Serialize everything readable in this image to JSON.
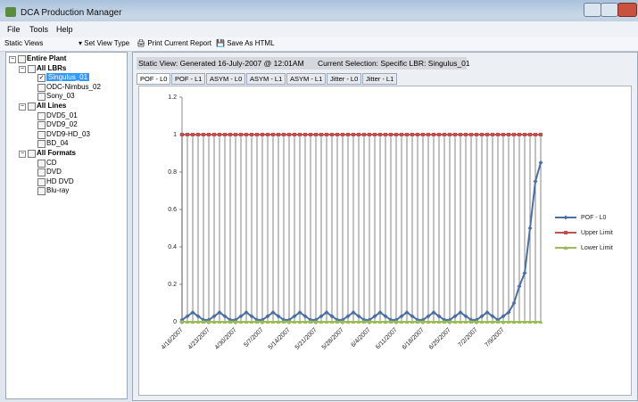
{
  "window": {
    "title": "DCA Production Manager"
  },
  "menu": [
    "File",
    "Tools",
    "Help"
  ],
  "toolbar": {
    "static_views": "Static Views",
    "set_view_type": "Set View Type",
    "print": "Print Current Report",
    "save": "Save As HTML"
  },
  "tree": {
    "label": "Entire Plant",
    "children": [
      {
        "label": "All LBRs",
        "children": [
          {
            "label": "Singulus_01",
            "checked": true,
            "selected": true
          },
          {
            "label": "ODC-Nimbus_02"
          },
          {
            "label": "Sony_03"
          }
        ]
      },
      {
        "label": "All Lines",
        "children": [
          {
            "label": "DVD5_01"
          },
          {
            "label": "DVD9_02"
          },
          {
            "label": "DVD9-HD_03"
          },
          {
            "label": "BD_04"
          }
        ]
      },
      {
        "label": "All Formats",
        "children": [
          {
            "label": "CD"
          },
          {
            "label": "DVD"
          },
          {
            "label": "HD DVD"
          },
          {
            "label": "Blu-ray"
          }
        ]
      }
    ]
  },
  "status": {
    "static_view": "Static View: Generated 16-July-2007 @ 12:01AM",
    "current_selection": "Current Selection: Specific LBR: Singulus_01"
  },
  "tabs": [
    "POF - L0",
    "POF - L1",
    "ASYM - L0",
    "ASYM - L1",
    "ASYM - L1",
    "Jitter - L0",
    "Jitter - L1"
  ],
  "chart_data": {
    "type": "line",
    "categories": [
      "4/16/2007",
      null,
      null,
      null,
      null,
      "4/23/2007",
      null,
      null,
      null,
      null,
      "4/30/2007",
      null,
      null,
      null,
      null,
      "5/7/2007",
      null,
      null,
      null,
      null,
      "5/14/2007",
      null,
      null,
      null,
      null,
      "5/21/2007",
      null,
      null,
      null,
      null,
      "5/28/2007",
      null,
      null,
      null,
      null,
      "6/4/2007",
      null,
      null,
      null,
      null,
      "6/11/2007",
      null,
      null,
      null,
      null,
      "6/18/2007",
      null,
      null,
      null,
      null,
      "6/25/2007",
      null,
      null,
      null,
      null,
      "7/2/2007",
      null,
      null,
      null,
      null,
      "7/9/2007",
      null,
      null,
      null,
      null,
      null,
      null,
      null
    ],
    "series": [
      {
        "name": "POF - L0",
        "color": "#4a6fa5",
        "marker": "diamond",
        "values": [
          0.01,
          0.03,
          0.05,
          0.03,
          0.01,
          0.01,
          0.03,
          0.05,
          0.03,
          0.01,
          0.01,
          0.03,
          0.05,
          0.03,
          0.01,
          0.01,
          0.03,
          0.05,
          0.03,
          0.01,
          0.01,
          0.03,
          0.05,
          0.03,
          0.01,
          0.01,
          0.03,
          0.05,
          0.03,
          0.01,
          0.01,
          0.03,
          0.05,
          0.03,
          0.01,
          0.01,
          0.03,
          0.05,
          0.03,
          0.01,
          0.01,
          0.03,
          0.05,
          0.03,
          0.01,
          0.01,
          0.03,
          0.05,
          0.03,
          0.01,
          0.01,
          0.03,
          0.05,
          0.03,
          0.01,
          0.01,
          0.03,
          0.05,
          0.03,
          0.01,
          0.03,
          0.05,
          0.1,
          0.19,
          0.26,
          0.5,
          0.75,
          0.85
        ]
      },
      {
        "name": "Upper Limit",
        "color": "#c0504d",
        "marker": "square",
        "values": [
          1,
          1,
          1,
          1,
          1,
          1,
          1,
          1,
          1,
          1,
          1,
          1,
          1,
          1,
          1,
          1,
          1,
          1,
          1,
          1,
          1,
          1,
          1,
          1,
          1,
          1,
          1,
          1,
          1,
          1,
          1,
          1,
          1,
          1,
          1,
          1,
          1,
          1,
          1,
          1,
          1,
          1,
          1,
          1,
          1,
          1,
          1,
          1,
          1,
          1,
          1,
          1,
          1,
          1,
          1,
          1,
          1,
          1,
          1,
          1,
          1,
          1,
          1,
          1,
          1,
          1,
          1,
          1
        ]
      },
      {
        "name": "Lower Limit",
        "color": "#9bbb59",
        "marker": "triangle",
        "values": [
          0,
          0,
          0,
          0,
          0,
          0,
          0,
          0,
          0,
          0,
          0,
          0,
          0,
          0,
          0,
          0,
          0,
          0,
          0,
          0,
          0,
          0,
          0,
          0,
          0,
          0,
          0,
          0,
          0,
          0,
          0,
          0,
          0,
          0,
          0,
          0,
          0,
          0,
          0,
          0,
          0,
          0,
          0,
          0,
          0,
          0,
          0,
          0,
          0,
          0,
          0,
          0,
          0,
          0,
          0,
          0,
          0,
          0,
          0,
          0,
          0,
          0,
          0,
          0,
          0,
          0,
          0,
          0
        ]
      }
    ],
    "ylim": [
      0,
      1.2
    ],
    "yticks": [
      0,
      0.2,
      0.4,
      0.6,
      0.8,
      1,
      1.2
    ],
    "high_low_lines": true,
    "legend": "right"
  }
}
